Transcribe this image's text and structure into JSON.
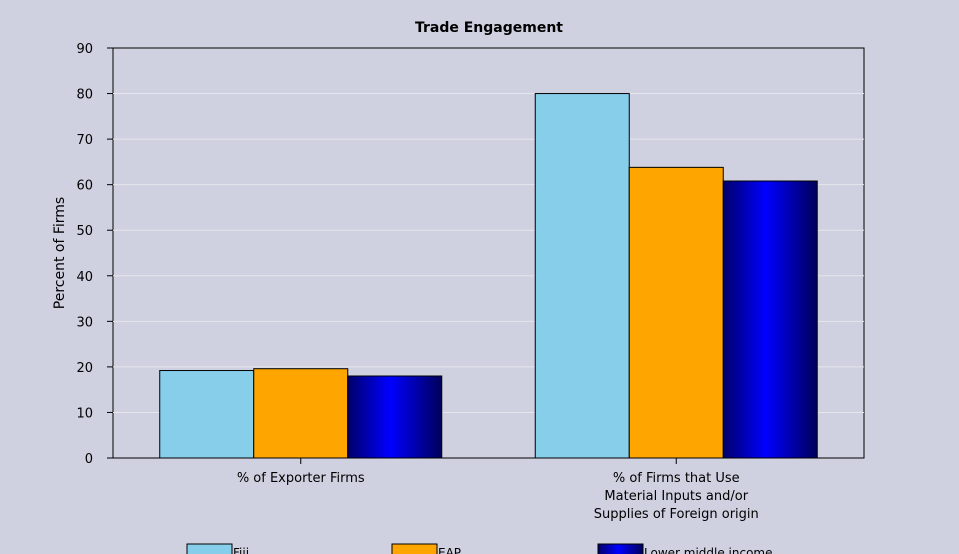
{
  "chart_data": {
    "type": "bar",
    "title": "Trade Engagement",
    "ylabel": "Percent of Firms",
    "xlabel": "",
    "ylim": [
      0,
      90
    ],
    "yticks": [
      0,
      10,
      20,
      30,
      40,
      50,
      60,
      70,
      80,
      90
    ],
    "grid": true,
    "legend_position": "bottom",
    "categories": [
      [
        "% of Exporter Firms"
      ],
      [
        "% of Firms that Use",
        "Material Inputs and/or",
        "Supplies of Foreign origin"
      ]
    ],
    "series": [
      {
        "name": "Fiji",
        "color": "#87ceeb",
        "values": [
          19.2,
          80.0
        ]
      },
      {
        "name": "EAP",
        "color": "#ffa500",
        "values": [
          19.6,
          63.8
        ]
      },
      {
        "name": "Lower middle income",
        "color": "#0000c8",
        "values": [
          18.0,
          60.8
        ]
      }
    ]
  }
}
